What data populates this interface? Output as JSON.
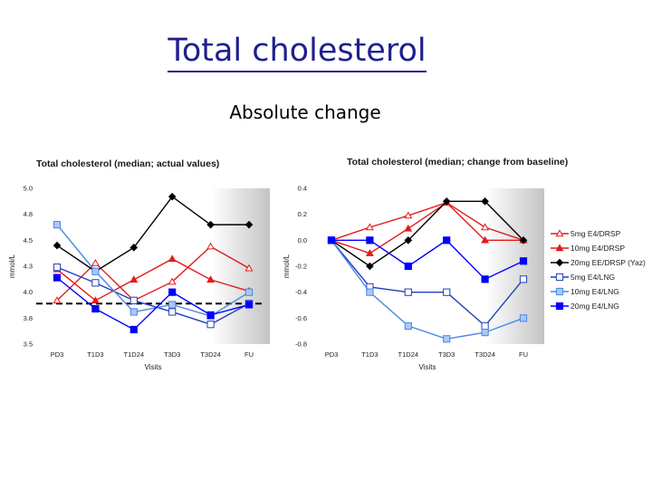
{
  "slide": {
    "title": "Total cholesterol",
    "subtitle": "Absolute change"
  },
  "chart_data": [
    {
      "type": "line",
      "title": "Total cholesterol (median; actual values)",
      "xlabel": "Visits",
      "ylabel": "mmol/L",
      "categories": [
        "PD3",
        "T1D3",
        "T1D24",
        "T3D3",
        "T3D24",
        "FU"
      ],
      "ylim": [
        3.5,
        5.0
      ],
      "yticks": [
        "3.5",
        "3.8",
        "4.0",
        "4.3",
        "4.5",
        "4.8",
        "5.0"
      ],
      "reference_line": 3.89,
      "series": [
        {
          "name": "5mg E4/DRSP",
          "color": "#e41a1c",
          "marker": "triangle-open",
          "values": [
            3.92,
            4.28,
            3.92,
            4.1,
            4.44,
            4.23
          ]
        },
        {
          "name": "10mg E4/DRSP",
          "color": "#e41a1c",
          "marker": "triangle-filled",
          "values": [
            4.22,
            3.92,
            4.12,
            4.32,
            4.12,
            4.01
          ]
        },
        {
          "name": "20mg EE/DRSP (Yaz)",
          "color": "#000000",
          "marker": "diamond",
          "values": [
            4.45,
            4.2,
            4.43,
            4.92,
            4.65,
            4.65
          ]
        },
        {
          "name": "5mg E4/LNG",
          "color": "#1f3fbf",
          "marker": "square-open",
          "values": [
            4.24,
            4.09,
            3.92,
            3.81,
            3.69,
            3.89
          ]
        },
        {
          "name": "10mg E4/LNG",
          "color": "#4a86e8",
          "marker": "square-light",
          "values": [
            4.65,
            4.2,
            3.81,
            3.88,
            3.77,
            4.0
          ]
        },
        {
          "name": "20mg E4/LNG",
          "color": "#0000ff",
          "marker": "square-filled",
          "values": [
            4.14,
            3.84,
            3.64,
            4.0,
            3.78,
            3.88
          ]
        }
      ]
    },
    {
      "type": "line",
      "title": "Total cholesterol (median; change from baseline)",
      "xlabel": "Visits",
      "ylabel": "mmol/L",
      "categories": [
        "PD3",
        "T1D3",
        "T1D24",
        "T3D3",
        "T3D24",
        "FU"
      ],
      "ylim": [
        -0.8,
        0.4
      ],
      "yticks": [
        "-0.8",
        "-0.6",
        "-0.4",
        "-0.2",
        "0.0",
        "0.2",
        "0.4"
      ],
      "series": [
        {
          "name": "5mg E4/DRSP",
          "color": "#e41a1c",
          "marker": "triangle-open",
          "values": [
            0.0,
            0.1,
            0.19,
            0.29,
            0.1,
            0.0
          ]
        },
        {
          "name": "10mg E4/DRSP",
          "color": "#e41a1c",
          "marker": "triangle-filled",
          "values": [
            0.0,
            -0.1,
            0.09,
            0.29,
            0.0,
            0.0
          ]
        },
        {
          "name": "20mg EE/DRSP (Yaz)",
          "color": "#000000",
          "marker": "diamond",
          "values": [
            0.0,
            -0.2,
            0.0,
            0.3,
            0.3,
            0.0
          ]
        },
        {
          "name": "5mg E4/LNG",
          "color": "#1f3fbf",
          "marker": "square-open",
          "values": [
            0.0,
            -0.36,
            -0.4,
            -0.4,
            -0.66,
            -0.3
          ]
        },
        {
          "name": "10mg E4/LNG",
          "color": "#4a86e8",
          "marker": "square-light",
          "values": [
            0.0,
            -0.4,
            -0.66,
            -0.76,
            -0.71,
            -0.6
          ]
        },
        {
          "name": "20mg E4/LNG",
          "color": "#0000ff",
          "marker": "square-filled",
          "values": [
            0.0,
            0.0,
            -0.2,
            0.0,
            -0.3,
            -0.16
          ]
        }
      ]
    }
  ]
}
